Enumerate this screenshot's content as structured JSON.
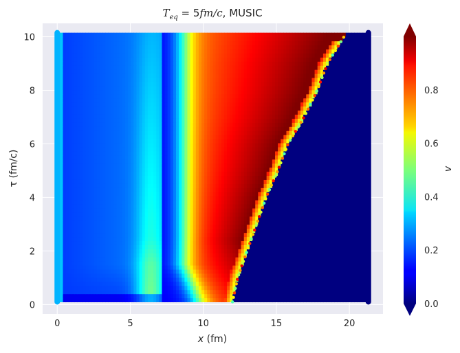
{
  "chart_data": {
    "type": "heatmap",
    "title": "T_eq = 5 fm/c, MUSIC",
    "title_parts": {
      "math": "T",
      "sub": "eq",
      "eq": " = 5",
      "unit": "fm/c",
      "suffix": ", MUSIC"
    },
    "xlabel": "x (fm)",
    "xlabel_parts": {
      "sym": "x",
      "rest": " (fm)"
    },
    "ylabel": "τ (fm/c)",
    "xlim": [
      -1.0,
      22.3
    ],
    "ylim": [
      -0.35,
      10.5
    ],
    "xticks": [
      0,
      5,
      10,
      15,
      20
    ],
    "yticks": [
      0,
      2,
      4,
      6,
      8,
      10
    ],
    "x_range": [
      0,
      21.3
    ],
    "tau_range": [
      0.1,
      10.15
    ],
    "front": [
      [
        0.1,
        12.0
      ],
      [
        1.0,
        12.35
      ],
      [
        2.0,
        13.0
      ],
      [
        3.0,
        13.65
      ],
      [
        4.0,
        14.3
      ],
      [
        5.0,
        15.1
      ],
      [
        6.0,
        15.8
      ],
      [
        7.0,
        16.9
      ],
      [
        8.0,
        17.8
      ],
      [
        9.0,
        18.5
      ],
      [
        10.15,
        19.8
      ]
    ],
    "colorbar": {
      "label": "v",
      "min": 0.0,
      "max": 1.0,
      "ticks": [
        0.0,
        0.2,
        0.4,
        0.6,
        0.8
      ],
      "colormap": "jet",
      "extend": "both"
    },
    "background": "#eaeaf2",
    "grid": true
  }
}
